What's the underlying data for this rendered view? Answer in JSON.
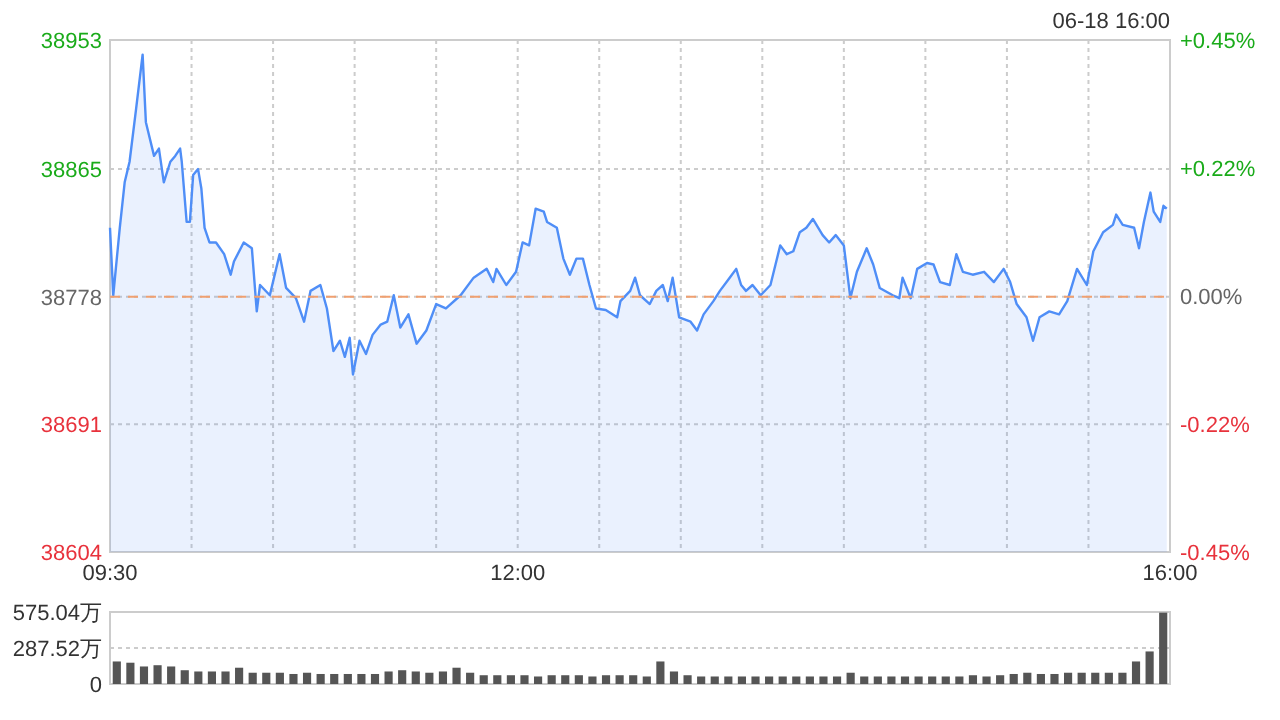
{
  "chart_data": [
    {
      "type": "area",
      "subtitle": "06-18 16:00",
      "color": "#4f8ef7",
      "x": [
        9.5,
        9.52,
        9.56,
        9.59,
        9.62,
        9.66,
        9.7,
        9.72,
        9.77,
        9.8,
        9.83,
        9.87,
        9.9,
        9.93,
        9.94,
        9.97,
        9.99,
        10.01,
        10.04,
        10.06,
        10.08,
        10.11,
        10.15,
        10.2,
        10.24,
        10.26,
        10.32,
        10.37,
        10.4,
        10.42,
        10.48,
        10.54,
        10.58,
        10.64,
        10.69,
        10.73,
        10.79,
        10.83,
        10.87,
        10.91,
        10.94,
        10.97,
        10.99,
        11.03,
        11.07,
        11.11,
        11.16,
        11.2,
        11.24,
        11.28,
        11.33,
        11.38,
        11.44,
        11.5,
        11.56,
        11.65,
        11.73,
        11.81,
        11.85,
        11.87,
        11.93,
        11.99,
        12.03,
        12.07,
        12.11,
        12.16,
        12.18,
        12.24,
        12.28,
        12.32,
        12.36,
        12.4,
        12.44,
        12.48,
        12.54,
        12.61,
        12.63,
        12.69,
        12.72,
        12.75,
        12.81,
        12.85,
        12.89,
        12.92,
        12.95,
        12.99,
        13.06,
        13.1,
        13.14,
        13.2,
        13.24,
        13.3,
        13.34,
        13.37,
        13.4,
        13.44,
        13.49,
        13.55,
        13.61,
        13.65,
        13.69,
        13.73,
        13.77,
        13.81,
        13.87,
        13.91,
        13.95,
        14.0,
        14.04,
        14.08,
        14.14,
        14.18,
        14.22,
        14.3,
        14.34,
        14.36,
        14.41,
        14.45,
        14.51,
        14.55,
        14.59,
        14.65,
        14.69,
        14.73,
        14.79,
        14.86,
        14.92,
        14.98,
        15.02,
        15.06,
        15.12,
        15.16,
        15.2,
        15.26,
        15.32,
        15.37,
        15.43,
        15.49,
        15.53,
        15.59,
        15.65,
        15.67,
        15.71,
        15.78,
        15.81,
        15.84,
        15.88,
        15.9,
        15.94,
        15.96,
        15.98
      ],
      "values": [
        38825,
        38779,
        38825,
        38856,
        38870,
        38906,
        38943,
        38897,
        38874,
        38879,
        38856,
        38870,
        38874,
        38879,
        38870,
        38829,
        38829,
        38861,
        38865,
        38852,
        38825,
        38815,
        38815,
        38807,
        38793,
        38802,
        38815,
        38811,
        38768,
        38786,
        38779,
        38807,
        38784,
        38777,
        38761,
        38782,
        38786,
        38770,
        38741,
        38748,
        38737,
        38750,
        38725,
        38748,
        38739,
        38752,
        38759,
        38761,
        38779,
        38757,
        38766,
        38746,
        38755,
        38773,
        38770,
        38779,
        38791,
        38797,
        38788,
        38797,
        38786,
        38795,
        38815,
        38813,
        38838,
        38836,
        38829,
        38825,
        38804,
        38793,
        38804,
        38804,
        38786,
        38770,
        38769,
        38764,
        38775,
        38782,
        38791,
        38779,
        38773,
        38782,
        38786,
        38775,
        38791,
        38764,
        38761,
        38755,
        38766,
        38775,
        38782,
        38791,
        38797,
        38786,
        38782,
        38786,
        38779,
        38786,
        38813,
        38807,
        38809,
        38822,
        38825,
        38831,
        38820,
        38815,
        38820,
        38813,
        38777,
        38795,
        38811,
        38800,
        38784,
        38779,
        38777,
        38791,
        38777,
        38797,
        38801,
        38800,
        38788,
        38786,
        38807,
        38795,
        38793,
        38795,
        38788,
        38797,
        38788,
        38773,
        38764,
        38748,
        38764,
        38768,
        38766,
        38775,
        38797,
        38786,
        38809,
        38822,
        38827,
        38834,
        38827,
        38825,
        38811,
        38829,
        38849,
        38836,
        38829,
        38840,
        38838
      ],
      "xlim": [
        9.5,
        16
      ],
      "xticks": [
        {
          "value": 9.5,
          "label": "09:30"
        },
        {
          "value": 10,
          "label": null
        },
        {
          "value": 10.5,
          "label": null
        },
        {
          "value": 11,
          "label": null
        },
        {
          "value": 11.5,
          "label": null
        },
        {
          "value": 12,
          "label": "12:00"
        },
        {
          "value": 12.5,
          "label": null
        },
        {
          "value": 13,
          "label": null
        },
        {
          "value": 13.5,
          "label": null
        },
        {
          "value": 14,
          "label": null
        },
        {
          "value": 14.5,
          "label": null
        },
        {
          "value": 15,
          "label": null
        },
        {
          "value": 15.5,
          "label": null
        },
        {
          "value": 16,
          "label": "16:00"
        }
      ],
      "ylim": [
        38604,
        38953
      ],
      "yticks": [
        38604,
        38691,
        38778,
        38865,
        38953
      ],
      "y2lim": [
        -0.45,
        0.45
      ],
      "y2ticks": [
        {
          "value": -0.45,
          "label": "-0.45%"
        },
        {
          "value": -0.225,
          "label": "-0.22%"
        },
        {
          "value": 0,
          "label": "0.00%"
        },
        {
          "value": 0.225,
          "label": "+0.22%"
        },
        {
          "value": 0.45,
          "label": "+0.45%"
        }
      ],
      "grid": true,
      "ref_lines": [
        {
          "axis": "y",
          "value": 38778,
          "color": "#f0a070",
          "line_style": "dashed"
        }
      ]
    },
    {
      "type": "bar",
      "color": "#555555",
      "tick_labels": "y",
      "grid": "y",
      "categories": [
        null,
        null,
        null,
        null,
        null,
        null,
        null,
        null,
        null,
        null,
        null,
        null,
        null,
        null,
        null,
        null,
        null,
        null,
        null,
        null,
        null,
        null,
        null,
        null,
        null,
        null,
        null,
        null,
        null,
        null,
        null,
        null,
        null,
        null,
        null,
        null,
        null,
        null,
        null,
        null,
        null,
        null,
        null,
        null,
        null,
        null,
        null,
        null,
        null,
        null,
        null,
        null,
        null,
        null,
        null,
        null,
        null,
        null,
        null,
        null,
        null,
        null,
        null,
        null,
        null,
        null,
        null,
        null,
        null,
        null,
        null,
        null,
        null,
        null,
        null,
        null,
        null,
        null
      ],
      "values": [
        180,
        170,
        140,
        150,
        140,
        110,
        100,
        100,
        100,
        130,
        90,
        90,
        90,
        80,
        90,
        80,
        80,
        80,
        80,
        80,
        100,
        110,
        100,
        90,
        100,
        130,
        90,
        70,
        70,
        70,
        70,
        60,
        70,
        70,
        70,
        60,
        70,
        70,
        70,
        60,
        180,
        100,
        70,
        60,
        60,
        60,
        60,
        60,
        60,
        60,
        60,
        60,
        60,
        60,
        90,
        60,
        60,
        60,
        60,
        60,
        60,
        60,
        60,
        70,
        60,
        70,
        80,
        90,
        80,
        80,
        90,
        90,
        90,
        90,
        90,
        180,
        260,
        570
      ],
      "ylim": [
        0,
        575.04
      ],
      "yticks": [
        0,
        {
          "value": 287.52,
          "label": "287.52万"
        },
        {
          "value": 575.04,
          "label": "575.04万"
        }
      ]
    }
  ]
}
